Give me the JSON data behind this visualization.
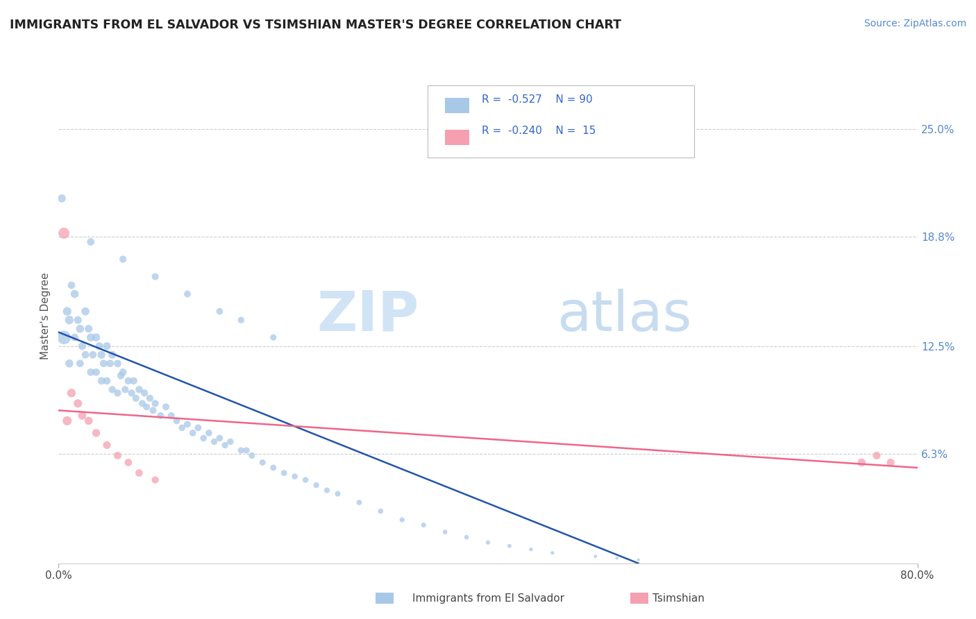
{
  "title": "IMMIGRANTS FROM EL SALVADOR VS TSIMSHIAN MASTER'S DEGREE CORRELATION CHART",
  "source_text": "Source: ZipAtlas.com",
  "ylabel": "Master's Degree",
  "y_tick_labels": [
    "25.0%",
    "18.8%",
    "12.5%",
    "6.3%"
  ],
  "y_tick_positions": [
    0.25,
    0.188,
    0.125,
    0.063
  ],
  "xlim": [
    0.0,
    0.8
  ],
  "ylim": [
    0.0,
    0.285
  ],
  "legend_r1": "-0.527",
  "legend_n1": "90",
  "legend_r2": "-0.240",
  "legend_n2": "15",
  "legend_label1": "Immigrants from El Salvador",
  "legend_label2": "Tsimshian",
  "color_blue": "#A8C8E8",
  "color_pink": "#F4A0B0",
  "line_color_blue": "#2255AA",
  "line_color_pink": "#EE6688",
  "blue_scatter_x": [
    0.005,
    0.008,
    0.01,
    0.01,
    0.012,
    0.015,
    0.015,
    0.018,
    0.02,
    0.02,
    0.022,
    0.025,
    0.025,
    0.028,
    0.03,
    0.03,
    0.032,
    0.035,
    0.035,
    0.038,
    0.04,
    0.04,
    0.042,
    0.045,
    0.045,
    0.048,
    0.05,
    0.05,
    0.055,
    0.055,
    0.058,
    0.06,
    0.062,
    0.065,
    0.068,
    0.07,
    0.072,
    0.075,
    0.078,
    0.08,
    0.082,
    0.085,
    0.088,
    0.09,
    0.095,
    0.1,
    0.105,
    0.11,
    0.115,
    0.12,
    0.125,
    0.13,
    0.135,
    0.14,
    0.145,
    0.15,
    0.155,
    0.16,
    0.17,
    0.175,
    0.18,
    0.19,
    0.2,
    0.21,
    0.22,
    0.23,
    0.24,
    0.25,
    0.26,
    0.28,
    0.3,
    0.32,
    0.34,
    0.36,
    0.38,
    0.4,
    0.42,
    0.44,
    0.46,
    0.5,
    0.52,
    0.54,
    0.003,
    0.03,
    0.06,
    0.09,
    0.12,
    0.15,
    0.17,
    0.2
  ],
  "blue_scatter_y": [
    0.13,
    0.145,
    0.14,
    0.115,
    0.16,
    0.155,
    0.13,
    0.14,
    0.135,
    0.115,
    0.125,
    0.145,
    0.12,
    0.135,
    0.13,
    0.11,
    0.12,
    0.13,
    0.11,
    0.125,
    0.12,
    0.105,
    0.115,
    0.125,
    0.105,
    0.115,
    0.12,
    0.1,
    0.115,
    0.098,
    0.108,
    0.11,
    0.1,
    0.105,
    0.098,
    0.105,
    0.095,
    0.1,
    0.092,
    0.098,
    0.09,
    0.095,
    0.088,
    0.092,
    0.085,
    0.09,
    0.085,
    0.082,
    0.078,
    0.08,
    0.075,
    0.078,
    0.072,
    0.075,
    0.07,
    0.072,
    0.068,
    0.07,
    0.065,
    0.065,
    0.062,
    0.058,
    0.055,
    0.052,
    0.05,
    0.048,
    0.045,
    0.042,
    0.04,
    0.035,
    0.03,
    0.025,
    0.022,
    0.018,
    0.015,
    0.012,
    0.01,
    0.008,
    0.006,
    0.004,
    0.003,
    0.002,
    0.21,
    0.185,
    0.175,
    0.165,
    0.155,
    0.145,
    0.14,
    0.13
  ],
  "blue_scatter_sizes": [
    200,
    80,
    80,
    70,
    60,
    70,
    60,
    65,
    70,
    60,
    65,
    70,
    60,
    65,
    70,
    60,
    60,
    70,
    60,
    65,
    65,
    60,
    60,
    65,
    60,
    60,
    65,
    55,
    60,
    55,
    58,
    60,
    55,
    58,
    55,
    58,
    55,
    58,
    52,
    55,
    52,
    55,
    52,
    54,
    50,
    52,
    50,
    50,
    48,
    50,
    48,
    50,
    48,
    48,
    46,
    48,
    45,
    46,
    44,
    44,
    43,
    42,
    40,
    40,
    38,
    38,
    36,
    35,
    34,
    32,
    30,
    28,
    26,
    24,
    22,
    20,
    18,
    16,
    14,
    12,
    10,
    10,
    70,
    60,
    55,
    52,
    50,
    48,
    46,
    44
  ],
  "pink_scatter_x": [
    0.005,
    0.008,
    0.012,
    0.018,
    0.022,
    0.028,
    0.035,
    0.045,
    0.055,
    0.065,
    0.075,
    0.09,
    0.748,
    0.762,
    0.775
  ],
  "pink_scatter_y": [
    0.19,
    0.082,
    0.098,
    0.092,
    0.085,
    0.082,
    0.075,
    0.068,
    0.062,
    0.058,
    0.052,
    0.048,
    0.058,
    0.062,
    0.058
  ],
  "pink_scatter_sizes": [
    130,
    90,
    80,
    75,
    72,
    70,
    68,
    65,
    62,
    60,
    58,
    55,
    70,
    65,
    65
  ],
  "blue_line_x": [
    0.0,
    0.54
  ],
  "blue_line_y": [
    0.133,
    0.0
  ],
  "pink_line_x": [
    0.0,
    0.8
  ],
  "pink_line_y": [
    0.088,
    0.055
  ]
}
